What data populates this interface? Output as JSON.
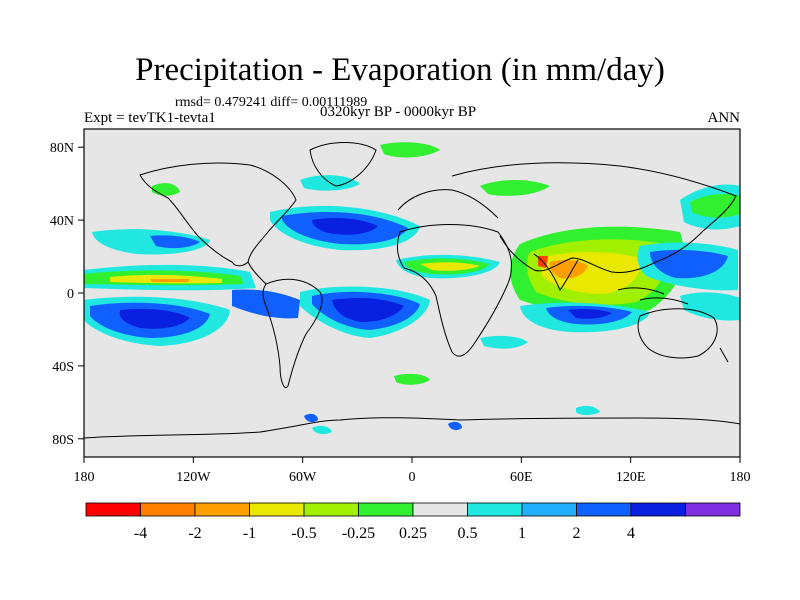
{
  "title": "Precipitation - Evaporation (in mm/day)",
  "stats": "rmsd= 0.479241 diff= 0.00111989",
  "experiment": "Expt = tevTK1-tevta1",
  "period": "0320kyr BP - 0000kyr BP",
  "season": "ANN",
  "map": {
    "lat_ticks": [
      "80N",
      "40N",
      "0",
      "40S",
      "80S"
    ],
    "lon_ticks": [
      "180",
      "120W",
      "60W",
      "0",
      "60E",
      "120E",
      "180"
    ],
    "background_color": "#e6e6e6"
  },
  "colorbar": {
    "colors": [
      "#ff0000",
      "#ff8000",
      "#ffa000",
      "#e8e800",
      "#a0f000",
      "#30f030",
      "#e6e6e6",
      "#20e8e0",
      "#20b0ff",
      "#1060ff",
      "#0a20e0",
      "#8030e0"
    ],
    "labels": [
      "-4",
      "-2",
      "-1",
      "-0.5",
      "-0.25",
      "0.25",
      "0.5",
      "1",
      "2",
      "4"
    ]
  }
}
